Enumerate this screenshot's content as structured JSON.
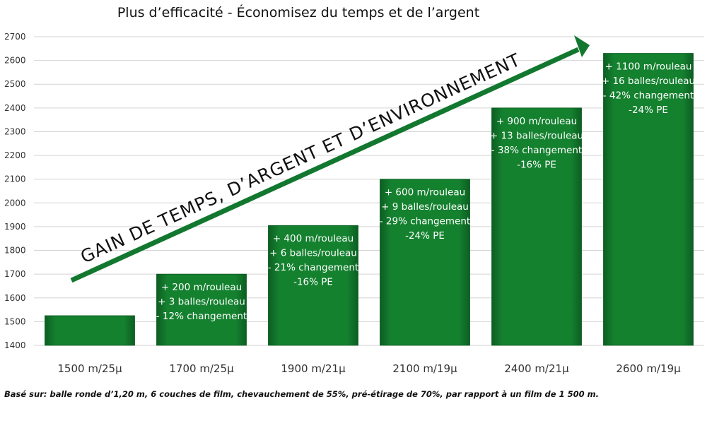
{
  "chart_data": {
    "type": "bar",
    "title": "Plus d’efficacité - Économisez du temps et de l’argent",
    "categories": [
      "1500 m/25µ",
      "1700 m/25µ",
      "1900 m/21µ",
      "2100 m/19µ",
      "2400 m/21µ",
      "2600 m/19µ"
    ],
    "values": [
      1525,
      1700,
      1905,
      2100,
      2400,
      2630
    ],
    "ylim": [
      1400,
      2700
    ],
    "yticks": [
      1400,
      1500,
      1600,
      1700,
      1800,
      1900,
      2000,
      2100,
      2200,
      2300,
      2400,
      2500,
      2600,
      2700
    ],
    "grid": true,
    "bar_color": "#12782f",
    "annotations": [
      [],
      [
        "+ 200 m/rouleau",
        "+ 3 balles/rouleau",
        "- 12% changement"
      ],
      [
        "+ 400 m/rouleau",
        "+ 6 balles/rouleau",
        "- 21% changement",
        "-16% PE"
      ],
      [
        "+ 600 m/rouleau",
        "+ 9 balles/rouleau",
        "- 29% changement",
        "-24% PE"
      ],
      [
        "+ 900 m/rouleau",
        "+ 13 balles/rouleau",
        "- 38% changement",
        "-16% PE"
      ],
      [
        "+ 1100 m/rouleau",
        "+ 16 balles/rouleau",
        "- 42% changement",
        "-24% PE"
      ]
    ],
    "arrow_label": "GAIN DE TEMPS, D’ARGENT ET D’ENVIRONNEMENT",
    "arrow_color": "#12782f"
  },
  "footnote": "Basé sur: balle ronde d’1,20 m, 6 couches de film, chevauchement de 55%, pré-étirage de 70%, par rapport à un film de 1 500 m."
}
